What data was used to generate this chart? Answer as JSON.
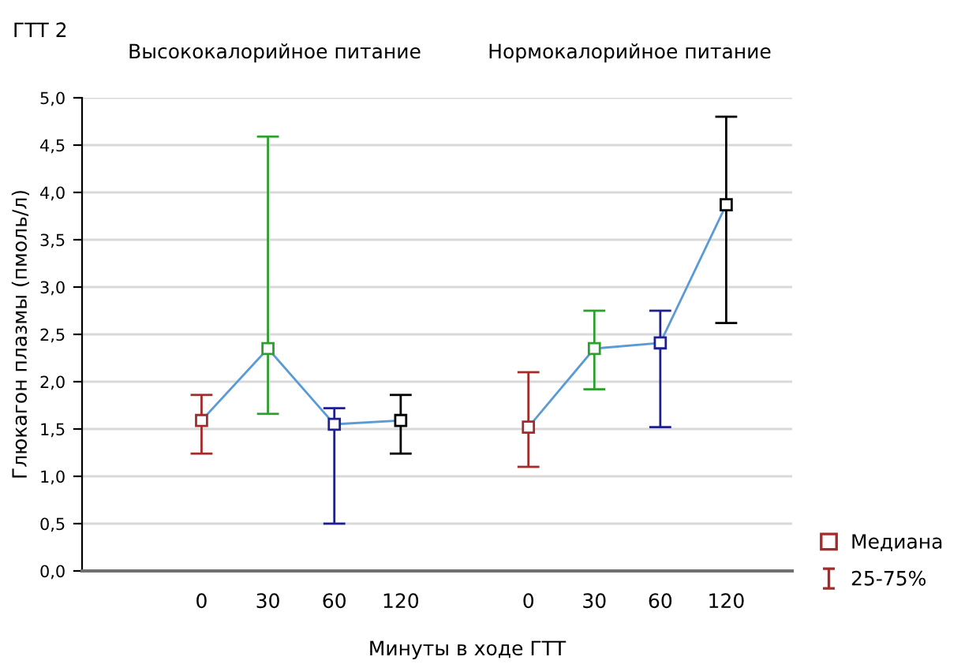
{
  "chart_data": [
    {
      "type": "line",
      "title": "Высококалорийное питание",
      "ylabel": "Глюкагон плазмы (пмоль/л)",
      "xlabel": "Минуты в ходе ГТТ",
      "annotations": [
        "ГТТ 2"
      ],
      "categories": [
        "0",
        "30",
        "60",
        "120"
      ],
      "series": [
        {
          "type": "line",
          "color": "#5b9bd5",
          "colors": [
            "#a52a2a",
            "#2ca02c",
            "#1f1f8f",
            "#000000"
          ],
          "values": [
            1.59,
            2.35,
            1.55,
            1.59
          ],
          "errors": [
            [
              1.24,
              1.86
            ],
            [
              1.66,
              4.59
            ],
            [
              0.5,
              1.72
            ],
            [
              1.24,
              1.86
            ]
          ]
        }
      ],
      "ylim": [
        0,
        5
      ],
      "yticks": [
        {
          "value": 0,
          "label": "0,0"
        },
        {
          "value": 0.5,
          "label": "0,5"
        },
        {
          "value": 1,
          "label": "1,0"
        },
        {
          "value": 1.5,
          "label": "1,5"
        },
        {
          "value": 2,
          "label": "2,0"
        },
        {
          "value": 2.5,
          "label": "2,5"
        },
        {
          "value": 3,
          "label": "3,0"
        },
        {
          "value": 3.5,
          "label": "3,5"
        },
        {
          "value": 4,
          "label": "4,0"
        },
        {
          "value": 4.5,
          "label": "4,5"
        },
        {
          "value": 5,
          "label": "5,0"
        }
      ],
      "grid": "y",
      "marker": "square"
    },
    {
      "type": "line",
      "title": "Нормокалорийное питание",
      "annotations": [
        "25-75%"
      ],
      "categories": [
        "0",
        "30",
        "60",
        "120"
      ],
      "series": [
        {
          "type": "line",
          "name": "Медиана",
          "color": "#5b9bd5",
          "colors": [
            "#a52a2a",
            "#2ca02c",
            "#1f1f8f",
            "#000000"
          ],
          "values": [
            1.52,
            2.35,
            2.41,
            3.87
          ],
          "errors": [
            [
              1.1,
              2.1
            ],
            [
              1.92,
              2.75
            ],
            [
              1.52,
              2.75
            ],
            [
              2.62,
              4.8
            ]
          ]
        }
      ],
      "ylim": [
        0,
        5
      ],
      "tick_labels": "x",
      "grid": "y",
      "marker": "square",
      "legend": "bottom right"
    }
  ]
}
